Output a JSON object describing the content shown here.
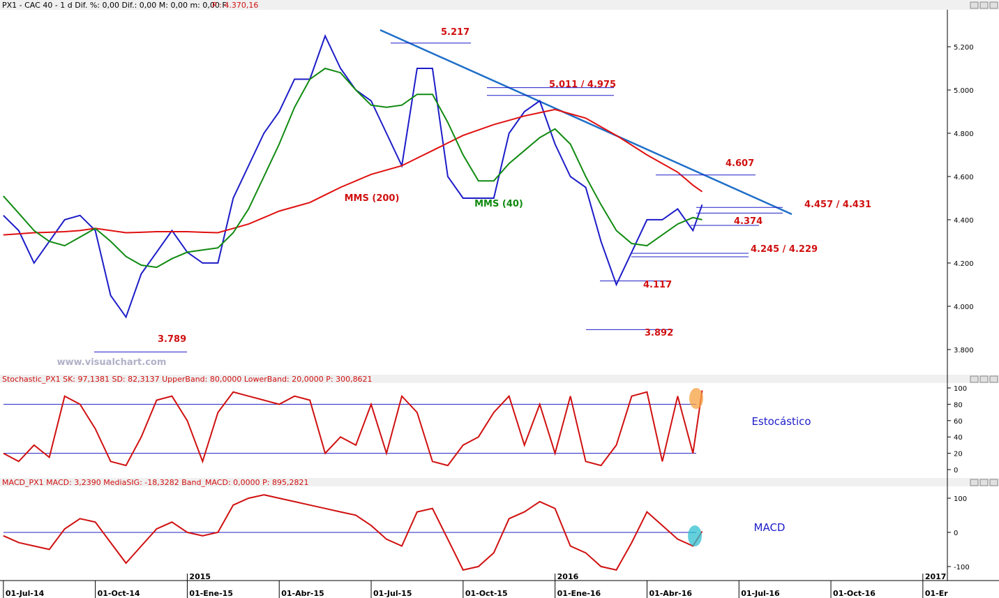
{
  "header": {
    "symbol": "PX1 - CAC 40 - 1 d  Dif. %: 0,00  Dif.: 0,00  M: 0,00  m: 0,00  F:",
    "price": "P : 4.370,16"
  },
  "watermark": "www.visualchart.com",
  "chart_data": [
    {
      "type": "line",
      "xlim": [
        -0.11,
        30.8
      ],
      "ylim": [
        3690,
        5371
      ],
      "x": [
        0,
        0.5,
        1,
        1.5,
        2,
        2.5,
        3,
        3.5,
        4,
        4.5,
        5,
        5.5,
        6,
        6.5,
        7,
        7.5,
        8,
        8.5,
        9,
        9.5,
        10,
        10.5,
        11,
        11.5,
        12,
        12.5,
        13,
        13.5,
        14,
        14.5,
        15,
        15.5,
        16,
        16.5,
        17,
        17.5,
        18,
        18.5,
        19,
        19.5,
        20,
        20.5,
        21,
        21.5,
        22,
        22.5,
        22.8
      ],
      "series": [
        {
          "color": "#1c1cc8",
          "values": [
            4420,
            4350,
            4200,
            4300,
            4400,
            4420,
            4350,
            4050,
            3950,
            4150,
            4250,
            4350,
            4250,
            4200,
            4200,
            4500,
            4650,
            4800,
            4900,
            5050,
            5050,
            5250,
            5100,
            5000,
            4950,
            4800,
            4650,
            5100,
            5100,
            4600,
            4500,
            4500,
            4500,
            4800,
            4900,
            4950,
            4750,
            4600,
            4550,
            4300,
            4100,
            4250,
            4400,
            4400,
            4450,
            4350,
            4470
          ]
        },
        {
          "name": "MMS (200)",
          "color": "#e01010",
          "values": [
            4330,
            4335,
            4340,
            4342,
            4345,
            4350,
            4360,
            4350,
            4340,
            4342,
            4345,
            4345,
            4345,
            4342,
            4340,
            4360,
            4380,
            4410,
            4440,
            4460,
            4480,
            4515,
            4550,
            4580,
            4610,
            4630,
            4650,
            4685,
            4720,
            4755,
            4790,
            4815,
            4840,
            4860,
            4880,
            4895,
            4910,
            4890,
            4870,
            4830,
            4790,
            4745,
            4700,
            4660,
            4620,
            4560,
            4530
          ]
        },
        {
          "name": "MMS (40)",
          "color": "#108a10",
          "values": [
            4510,
            4430,
            4350,
            4300,
            4280,
            4320,
            4360,
            4300,
            4230,
            4190,
            4180,
            4220,
            4250,
            4260,
            4270,
            4340,
            4450,
            4600,
            4750,
            4920,
            5050,
            5100,
            5080,
            5000,
            4930,
            4920,
            4930,
            4980,
            4980,
            4850,
            4700,
            4580,
            4580,
            4660,
            4720,
            4780,
            4820,
            4750,
            4600,
            4470,
            4350,
            4290,
            4280,
            4330,
            4380,
            4410,
            4400
          ]
        }
      ],
      "yticks": [
        {
          "value": 3800,
          "label": "3.800"
        },
        {
          "value": 4000,
          "label": "4.000"
        },
        {
          "value": 4200,
          "label": "4.200"
        },
        {
          "value": 4400,
          "label": "4.400"
        },
        {
          "value": 4600,
          "label": "4.600"
        },
        {
          "value": 4800,
          "label": "4.800"
        },
        {
          "value": 5000,
          "label": "5.000"
        },
        {
          "value": 5200,
          "label": "5.200"
        }
      ],
      "xticks": [
        {
          "value": 0,
          "label": "01-Jul-14"
        },
        {
          "value": 3,
          "label": "01-Oct-14"
        },
        {
          "value": 6,
          "label": "01-Ene-15"
        },
        {
          "value": 9,
          "label": "01-Abr-15"
        },
        {
          "value": 12,
          "label": "01-Jul-15"
        },
        {
          "value": 15,
          "label": "01-Oct-15"
        },
        {
          "value": 18,
          "label": "01-Ene-16"
        },
        {
          "value": 21,
          "label": "01-Abr-16"
        },
        {
          "value": 24,
          "label": "01-Jul-16"
        },
        {
          "value": 27,
          "label": "01-Oct-16"
        },
        {
          "value": 30,
          "label": "01-Er"
        }
      ],
      "year_markers": [
        {
          "value": 6,
          "label": "2015"
        },
        {
          "value": 18,
          "label": "2016"
        },
        {
          "value": 30,
          "label": "2017"
        }
      ],
      "levels": [
        {
          "label": "5.217",
          "values": [
            5217
          ]
        },
        {
          "label": "5.011 / 4.975",
          "values": [
            5011,
            4975
          ]
        },
        {
          "label": "4.607",
          "values": [
            4607
          ]
        },
        {
          "label": "4.457 / 4.431",
          "values": [
            4457,
            4431
          ]
        },
        {
          "label": "4.374",
          "values": [
            4374
          ]
        },
        {
          "label": "4.245 / 4.229",
          "values": [
            4245,
            4229
          ]
        },
        {
          "label": "4.117",
          "values": [
            4117
          ]
        },
        {
          "label": "3.892",
          "values": [
            3892
          ]
        },
        {
          "label": "3.789",
          "values": [
            3789
          ]
        }
      ]
    },
    {
      "type": "line",
      "title": "Stochastic_PX1  SK: 97,1381  SD: 82,3137  UpperBand: 80,0000  LowerBand: 20,0000  P: 300,8621",
      "label": "Estocástico",
      "xlim": [
        -0.11,
        30.8
      ],
      "ylim": [
        -7.7,
        106.8
      ],
      "bands": [
        80,
        20
      ],
      "x": [
        0,
        0.5,
        1,
        1.5,
        2,
        2.5,
        3,
        3.5,
        4,
        4.5,
        5,
        5.5,
        6,
        6.5,
        7,
        7.5,
        8,
        8.5,
        9,
        9.5,
        10,
        10.5,
        11,
        11.5,
        12,
        12.5,
        13,
        13.5,
        14,
        14.5,
        15,
        15.5,
        16,
        16.5,
        17,
        17.5,
        18,
        18.5,
        19,
        19.5,
        20,
        20.5,
        21,
        21.5,
        22,
        22.5,
        22.8
      ],
      "series": [
        {
          "color": "#d01010",
          "values": [
            20,
            10,
            30,
            15,
            90,
            80,
            50,
            10,
            5,
            40,
            85,
            90,
            60,
            10,
            70,
            95,
            90,
            85,
            80,
            90,
            85,
            20,
            40,
            30,
            80,
            20,
            90,
            70,
            10,
            5,
            30,
            40,
            70,
            90,
            30,
            80,
            20,
            90,
            10,
            5,
            30,
            90,
            95,
            10,
            90,
            20,
            97
          ]
        }
      ],
      "yticks": [
        0,
        20,
        40,
        60,
        80,
        100
      ]
    },
    {
      "type": "line",
      "title": "MACD_PX1  MACD: 3,2390  MediaSIG: -18,3282  Band_MACD: 0,0000  P: 895,2821",
      "label": "MACD",
      "xlim": [
        -0.11,
        30.8
      ],
      "ylim": [
        -141,
        153
      ],
      "bands": [
        0
      ],
      "x": [
        0,
        0.5,
        1,
        1.5,
        2,
        2.5,
        3,
        3.5,
        4,
        4.5,
        5,
        5.5,
        6,
        6.5,
        7,
        7.5,
        8,
        8.5,
        9,
        9.5,
        10,
        10.5,
        11,
        11.5,
        12,
        12.5,
        13,
        13.5,
        14,
        14.5,
        15,
        15.5,
        16,
        16.5,
        17,
        17.5,
        18,
        18.5,
        19,
        19.5,
        20,
        20.5,
        21,
        21.5,
        22,
        22.5,
        22.8
      ],
      "series": [
        {
          "color": "#d01010",
          "values": [
            -10,
            -30,
            -40,
            -50,
            10,
            40,
            30,
            -30,
            -90,
            -40,
            10,
            30,
            0,
            -10,
            0,
            80,
            100,
            110,
            100,
            90,
            80,
            70,
            60,
            50,
            20,
            -20,
            -40,
            60,
            70,
            -20,
            -110,
            -100,
            -60,
            40,
            60,
            90,
            70,
            -40,
            -60,
            -100,
            -110,
            -30,
            60,
            20,
            -20,
            -40,
            3
          ]
        }
      ],
      "yticks": [
        -100,
        0,
        100
      ]
    }
  ]
}
